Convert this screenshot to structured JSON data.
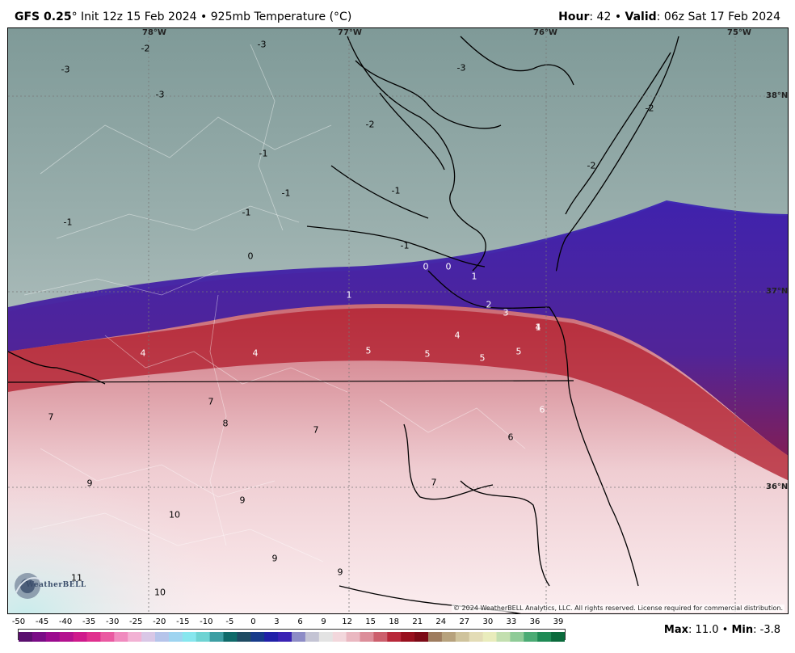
{
  "header": {
    "model": "GFS 0.25",
    "degree": "°",
    "init": "Init 12z 15 Feb 2024",
    "bullet": "•",
    "field": "925mb Temperature (°C)",
    "hour_label": "Hour",
    "hour_value": ": 42",
    "valid_label": "Valid",
    "valid_value": ": 06z Sat 17 Feb 2024"
  },
  "map": {
    "longitudes": [
      "78°W",
      "77°W",
      "76°W",
      "75°W"
    ],
    "latitudes": [
      "38°N",
      "37°N",
      "36°N"
    ],
    "contour_labels": [
      "-2",
      "-3",
      "-3",
      "-3",
      "-3",
      "-2",
      "-2",
      "-2",
      "-1",
      "-1",
      "-1",
      "-1",
      "-1",
      "-1",
      "0",
      "0",
      "0",
      "1",
      "1",
      "1",
      "2",
      "3",
      "4",
      "4",
      "4",
      "4",
      "5",
      "5",
      "5",
      "5",
      "7",
      "7",
      "8",
      "7",
      "7",
      "6",
      "6",
      "9",
      "9",
      "10",
      "9",
      "9",
      "11",
      "10"
    ],
    "copyright": "© 2024 WeatherBELL Analytics, LLC. All rights reserved. License required for commercial distribution.",
    "logo": "WeatherBELL"
  },
  "colorbar": {
    "ticks": [
      "-50",
      "-45",
      "-40",
      "-35",
      "-30",
      "-25",
      "-20",
      "-15",
      "-10",
      "-5",
      "0",
      "3",
      "6",
      "9",
      "12",
      "15",
      "18",
      "21",
      "24",
      "27",
      "30",
      "33",
      "36",
      "39"
    ],
    "colors": [
      "#5a0f6e",
      "#7a0c86",
      "#9b0a8e",
      "#b4128f",
      "#cf1a8c",
      "#e0308e",
      "#ea5aa2",
      "#f08bbf",
      "#f2b2d4",
      "#d9c7e6",
      "#b6c4ea",
      "#9ed4f0",
      "#87e6ee",
      "#6fd3d3",
      "#3d9ea3",
      "#0f6a6a",
      "#1f4b63",
      "#173b8a",
      "#2121a8",
      "#3a23b4",
      "#8d8cc6",
      "#c4c4d4",
      "#e3e3e3",
      "#f2d7dc",
      "#eab8c1",
      "#dc8e9a",
      "#cc5f6d",
      "#b8283a",
      "#98101e",
      "#7c0a16",
      "#9e7c5f",
      "#b7a27d",
      "#cfc39c",
      "#e3dcb6",
      "#e9ecbc",
      "#c3dfb0",
      "#8fcb97",
      "#4bab74",
      "#1f8a55",
      "#0b6a3c"
    ],
    "max_label": "Max",
    "max_value": ": 11.0",
    "min_label": "Min",
    "min_value": ": -3.8"
  }
}
